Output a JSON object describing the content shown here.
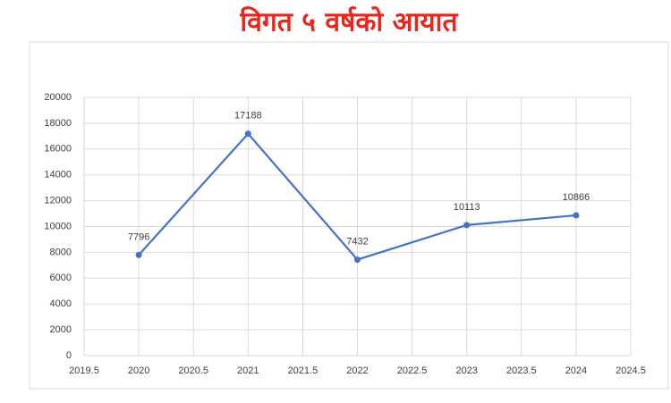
{
  "chart_data": {
    "type": "line",
    "title": "विगत ५ वर्षको आयात",
    "x": [
      2020,
      2021,
      2022,
      2023,
      2024
    ],
    "values": [
      7796,
      17188,
      7432,
      10113,
      10866
    ],
    "color": "#4472c4",
    "xlim": [
      2019.5,
      2024.5
    ],
    "xticks": [
      2019.5,
      2020,
      2020.5,
      2021,
      2021.5,
      2022,
      2022.5,
      2023,
      2023.5,
      2024,
      2024.5
    ],
    "ylim": [
      0,
      20000
    ],
    "yticks": [
      0,
      2000,
      4000,
      6000,
      8000,
      10000,
      12000,
      14000,
      16000,
      18000,
      20000
    ],
    "grid": true
  }
}
